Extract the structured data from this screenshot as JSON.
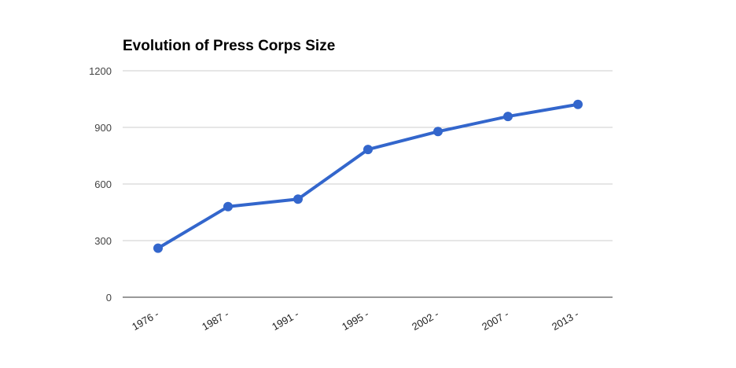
{
  "chart_data": {
    "type": "line",
    "title": "Evolution of Press Corps Size",
    "xlabel": "",
    "ylabel": "",
    "categories": [
      "1976 -",
      "1987 -",
      "1991 -",
      "1995 -",
      "2002 -",
      "2007 -",
      "2013 -"
    ],
    "series": [
      {
        "values": [
          260,
          480,
          520,
          783,
          878,
          958,
          1022
        ]
      }
    ],
    "ylim": [
      0,
      1200
    ],
    "yticks": [
      "0",
      "300",
      "600",
      "900",
      "1200"
    ],
    "grid": true,
    "legend": "none",
    "colors": {
      "line": "#3366cc",
      "grid": "#cccccc",
      "axis": "#333333"
    }
  }
}
